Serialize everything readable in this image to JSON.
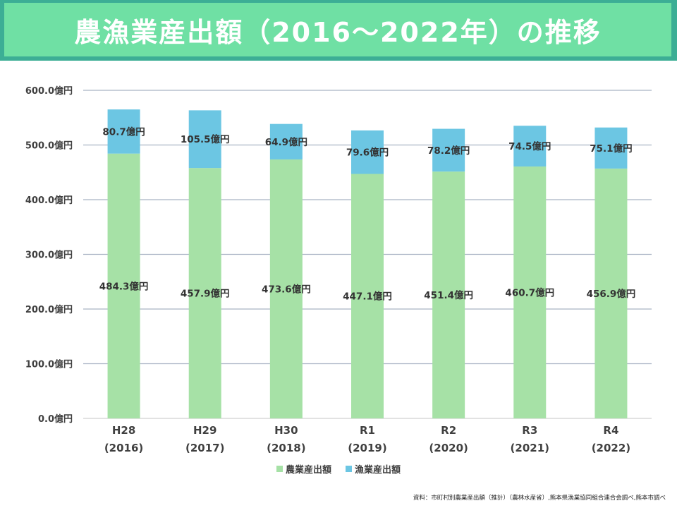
{
  "title": "農漁業産出額（2016〜2022年）の推移",
  "source": "資料：市町村別農業産出額（推計）（農林水産省）,熊本県漁業協同組合連合会調べ,熊本市調べ",
  "colors": {
    "agriculture": "#a6e1a6",
    "fishery": "#6cc6e3",
    "banner_outer": "#3cae95",
    "banner_inner": "#6fe0a4"
  },
  "chart_data": {
    "type": "bar",
    "stacked": true,
    "categories": [
      [
        "H28",
        "(2016)"
      ],
      [
        "H29",
        "(2017)"
      ],
      [
        "H30",
        "(2018)"
      ],
      [
        "R1",
        "(2019)"
      ],
      [
        "R2",
        "(2020)"
      ],
      [
        "R3",
        "(2021)"
      ],
      [
        "R4",
        "(2022)"
      ]
    ],
    "series": [
      {
        "name": "農業産出額",
        "values": [
          484.3,
          457.9,
          473.6,
          447.1,
          451.4,
          460.7,
          456.9
        ],
        "labels": [
          "484.3億円",
          "457.9億円",
          "473.6億円",
          "447.1億円",
          "451.4億円",
          "460.7億円",
          "456.9億円"
        ]
      },
      {
        "name": "漁業産出額",
        "values": [
          80.7,
          105.5,
          64.9,
          79.6,
          78.2,
          74.5,
          75.1
        ],
        "labels": [
          "80.7億円",
          "105.5億円",
          "64.9億円",
          "79.6億円",
          "78.2億円",
          "74.5億円",
          "75.1億円"
        ]
      }
    ],
    "ylim": [
      0,
      600
    ],
    "yticks": [
      0,
      100,
      200,
      300,
      400,
      500,
      600
    ],
    "ytick_labels": [
      "0.0億円",
      "100.0億円",
      "200.0億円",
      "300.0億円",
      "400.0億円",
      "500.0億円",
      "600.0億円"
    ],
    "grid": true,
    "legend_position": "bottom"
  }
}
